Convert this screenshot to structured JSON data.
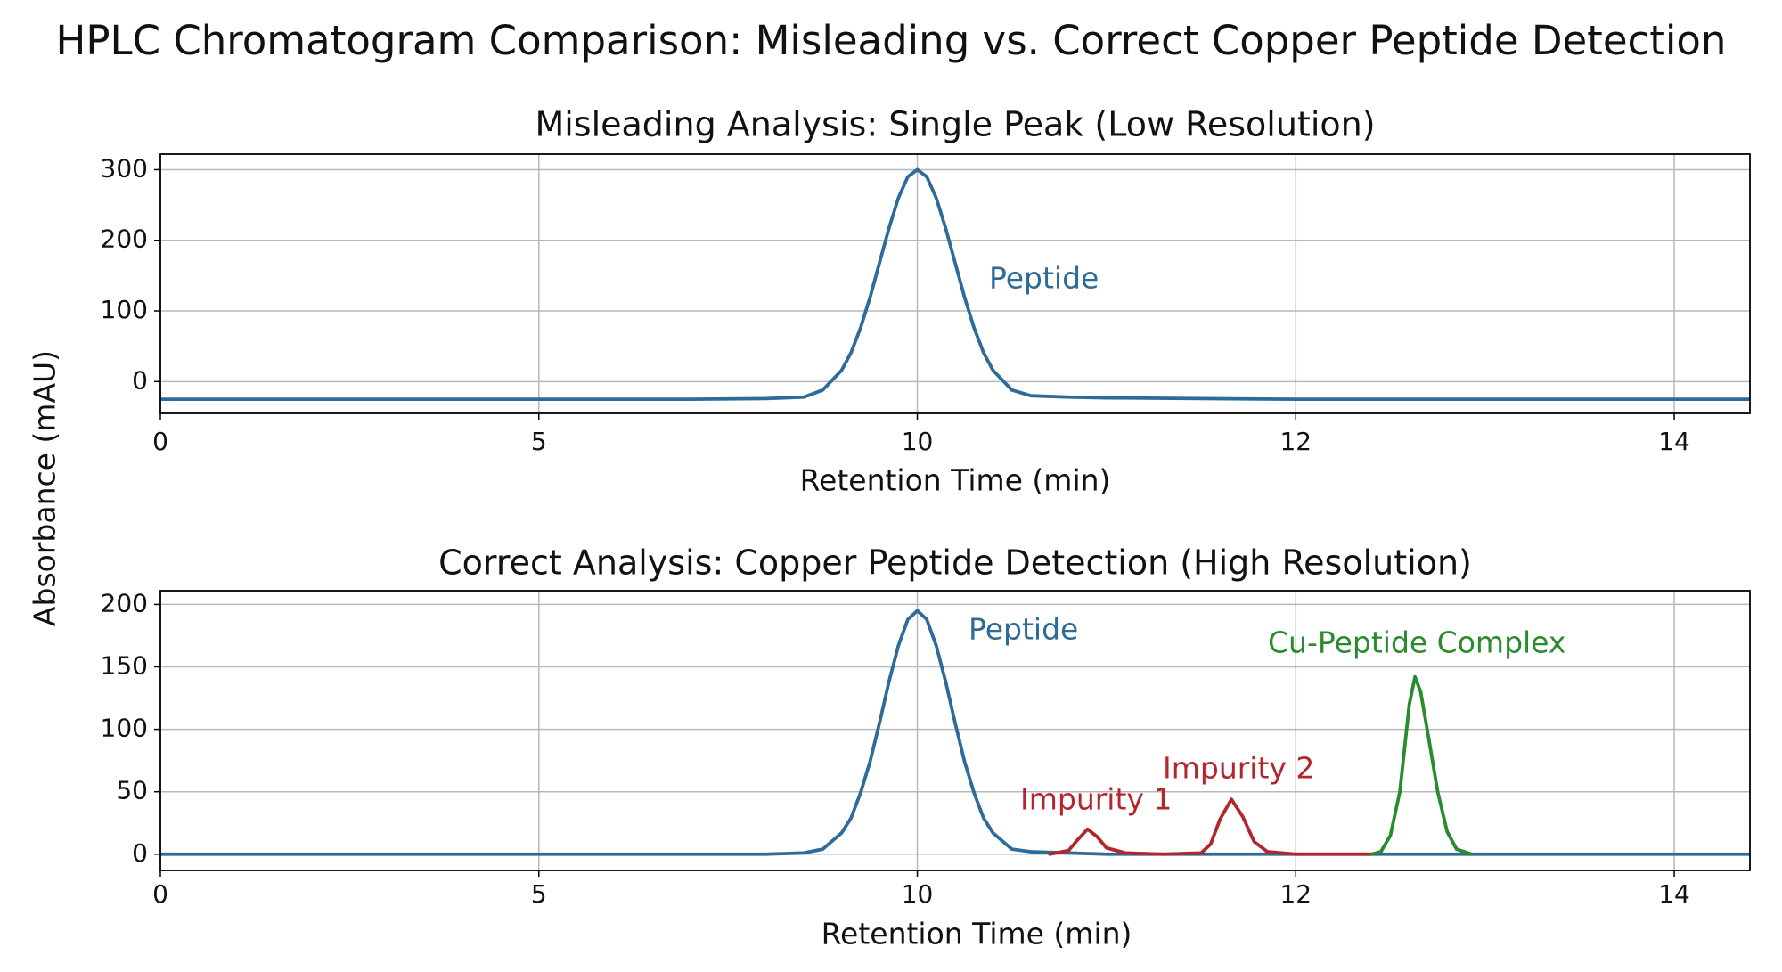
{
  "title": "HPLC Chromatogram Comparison: Misleading vs. Correct Copper Peptide Detection",
  "ylabel": "Absorbance (mAU)",
  "chart_data": [
    {
      "type": "line",
      "title": "Misleading Analysis: Single Peak (Low Resolution)",
      "xlabel": "Retention Time (min)",
      "xlim": [
        0,
        14.4
      ],
      "xticks": [
        0,
        5,
        10,
        12,
        14
      ],
      "ylim": [
        -45,
        322
      ],
      "yticks": [
        0,
        100,
        200,
        300
      ],
      "grid": true,
      "series": [
        {
          "color": "#2e6b98",
          "x": [
            0,
            2,
            4,
            6,
            7,
            8,
            8.5,
            8.75,
            9,
            9.125,
            9.25,
            9.375,
            9.5,
            9.625,
            9.75,
            9.875,
            10,
            10.05,
            10.1,
            10.15,
            10.2,
            10.25,
            10.3,
            10.35,
            10.4,
            10.5,
            10.6,
            10.8,
            11,
            11.5,
            12,
            13,
            14,
            14.4
          ],
          "values": [
            -25,
            -25,
            -25,
            -25,
            -25,
            -24,
            -22,
            -12,
            16,
            41,
            76,
            119,
            168,
            217,
            260,
            290,
            300,
            290,
            260,
            217,
            168,
            119,
            76,
            41,
            16,
            -12,
            -20,
            -22,
            -23,
            -24,
            -25,
            -25,
            -25,
            -25
          ]
        }
      ],
      "annotations": [
        {
          "text": "Peptide",
          "color": "#2e6b98"
        }
      ]
    },
    {
      "type": "line",
      "title": "Correct Analysis: Copper Peptide Detection (High Resolution)",
      "xlabel": "Retention Time (min)",
      "xlim": [
        0,
        14.4
      ],
      "xticks": [
        0,
        5,
        10,
        12,
        14
      ],
      "ylim": [
        -13,
        211
      ],
      "yticks": [
        0,
        50,
        100,
        150,
        200
      ],
      "grid": true,
      "series": [
        {
          "color": "#2e6b98",
          "x": [
            0,
            2,
            4,
            6,
            7,
            8,
            8.5,
            8.75,
            9,
            9.125,
            9.25,
            9.375,
            9.5,
            9.625,
            9.75,
            9.875,
            10,
            10.05,
            10.1,
            10.15,
            10.2,
            10.25,
            10.3,
            10.35,
            10.4,
            10.5,
            10.6,
            10.8,
            11,
            11.5,
            12,
            13,
            14,
            14.4
          ],
          "values": [
            0,
            0,
            0,
            0,
            0,
            0,
            1,
            4,
            17,
            29,
            49,
            74,
            105,
            138,
            167,
            188,
            195,
            188,
            167,
            138,
            105,
            74,
            49,
            29,
            17,
            4,
            2,
            1,
            0,
            0,
            0,
            0,
            0,
            0
          ]
        },
        {
          "color": "#b3262c",
          "x": [
            10.7,
            10.8,
            10.85,
            10.9,
            10.95,
            11,
            11.1,
            11.3,
            11.5,
            11.55,
            11.6,
            11.66,
            11.72,
            11.78,
            11.85,
            12,
            12.4
          ],
          "values": [
            0,
            3,
            12,
            20,
            14,
            5,
            1,
            0,
            1,
            8,
            28,
            44,
            30,
            10,
            2,
            0,
            0
          ]
        },
        {
          "color": "#2a8a2e",
          "x": [
            12.4,
            12.45,
            12.5,
            12.55,
            12.6,
            12.63,
            12.66,
            12.7,
            12.75,
            12.8,
            12.85,
            12.93
          ],
          "values": [
            0,
            2,
            15,
            50,
            120,
            142,
            130,
            95,
            50,
            18,
            4,
            0
          ]
        }
      ],
      "annotations": [
        {
          "text": "Peptide",
          "color": "#2e6b98"
        },
        {
          "text": "Impurity 1",
          "color": "#b3262c"
        },
        {
          "text": "Impurity 2",
          "color": "#b3262c"
        },
        {
          "text": "Cu-Peptide Complex",
          "color": "#2a8a2e"
        }
      ]
    }
  ]
}
